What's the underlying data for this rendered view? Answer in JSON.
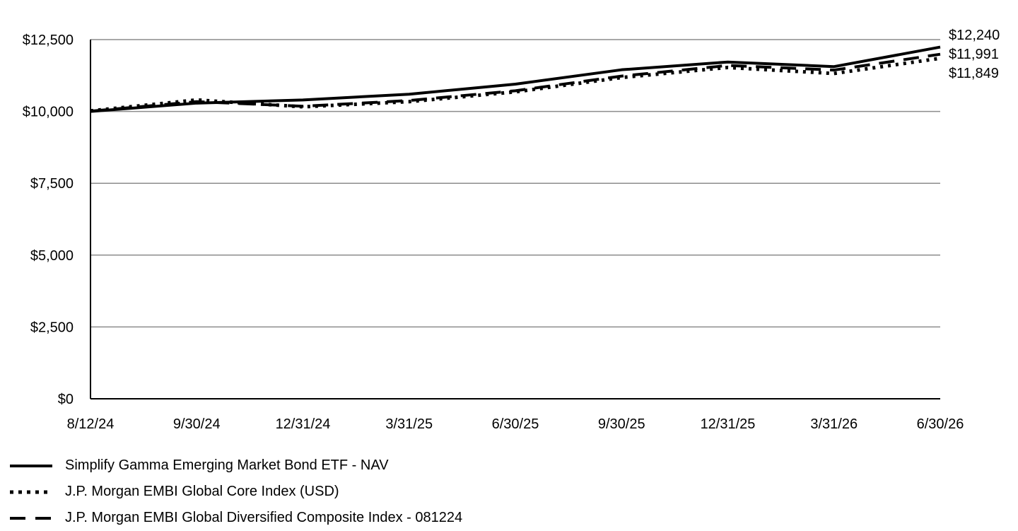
{
  "chart_data": {
    "type": "line",
    "x": [
      "8/12/24",
      "9/30/24",
      "12/31/24",
      "3/31/25",
      "6/30/25",
      "9/30/25",
      "12/31/25",
      "3/31/26",
      "6/30/26"
    ],
    "ylim": [
      0,
      12500
    ],
    "yticks": [
      0,
      2500,
      5000,
      7500,
      10000,
      12500
    ],
    "ytick_labels": [
      "$0",
      "$2,500",
      "$5,000",
      "$7,500",
      "$10,000",
      "$12,500"
    ],
    "grid": true,
    "legend_position": "bottom-left",
    "series": [
      {
        "name": "Simplify Gamma Emerging Market Bond ETF - NAV",
        "style": "solid",
        "values": [
          10000,
          10290,
          10400,
          10600,
          10950,
          11450,
          11720,
          11560,
          12240
        ],
        "end_label": "$12,240"
      },
      {
        "name": "J.P. Morgan EMBI Global Core Index (USD)",
        "style": "dotted",
        "values": [
          10020,
          10400,
          10160,
          10340,
          10680,
          11180,
          11530,
          11320,
          11849
        ],
        "end_label": "$11,849"
      },
      {
        "name": "J.P. Morgan EMBI Global Diversified Composite Index - 081224",
        "style": "dashed",
        "values": [
          10010,
          10340,
          10180,
          10380,
          10720,
          11230,
          11600,
          11440,
          11991
        ],
        "end_label": "$11,991"
      }
    ]
  },
  "colors": {
    "line": "#000000",
    "grid": "#8c8c8c",
    "axis": "#000000"
  }
}
